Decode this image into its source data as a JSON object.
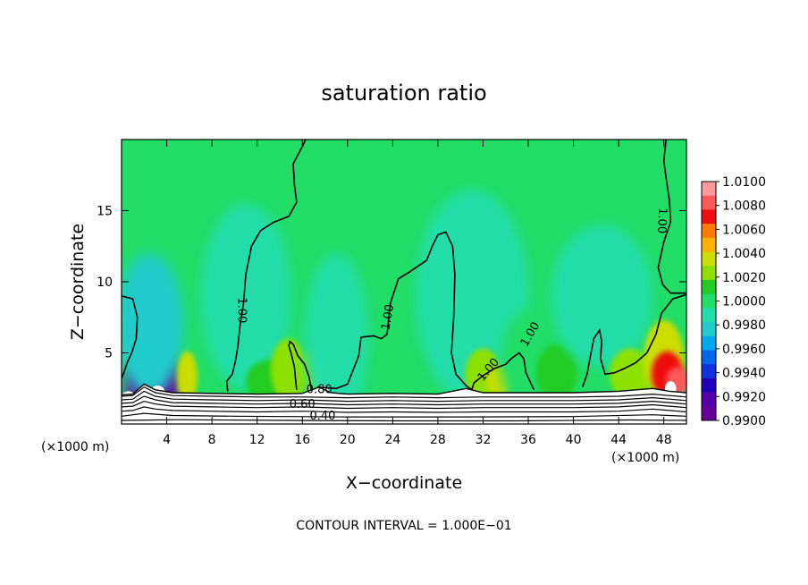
{
  "chart_data": {
    "type": "heatmap",
    "title": "saturation ratio",
    "xlabel": "X−coordinate",
    "ylabel": "Z−coordinate",
    "x_unit_left": "(×1000 m)",
    "x_unit_right": "(×1000 m)",
    "xlim": [
      0,
      50
    ],
    "ylim": [
      0,
      20
    ],
    "x_ticks": [
      4,
      8,
      12,
      16,
      20,
      24,
      28,
      32,
      36,
      40,
      44,
      48
    ],
    "y_ticks": [
      5,
      10,
      15
    ],
    "colorbar": {
      "levels": [
        "1.0100",
        "1.0080",
        "1.0060",
        "1.0040",
        "1.0020",
        "1.0000",
        "0.9980",
        "0.9960",
        "0.9940",
        "0.9920",
        "0.9900"
      ],
      "colors": [
        "#ff9a9a",
        "#ff5a5a",
        "#ee1010",
        "#ff7a00",
        "#ffb000",
        "#ccdd00",
        "#8ee000",
        "#22cc22",
        "#22dd66",
        "#22ddaa",
        "#22cccc",
        "#00aaee",
        "#0066ee",
        "#1133dd",
        "#2200bb",
        "#5500aa",
        "#660099"
      ]
    },
    "background_value": 1.0,
    "contour_labels": [
      "1.00",
      "1.00",
      "1.00",
      "1.00",
      "1.00",
      "0.80",
      "0.60",
      "0.40"
    ],
    "contour_interval_note": "CONTOUR INTERVAL = 1.000E−01",
    "anomalies": [
      {
        "x": 2.8,
        "z": 2.6,
        "rx": 2.4,
        "rz": 2.6,
        "value": 0.9905
      },
      {
        "x": 2.5,
        "z": 7.0,
        "rx": 3.0,
        "rz": 5.0,
        "value": 0.9975
      },
      {
        "x": 5.8,
        "z": 3.3,
        "rx": 0.9,
        "rz": 1.8,
        "value": 1.003
      },
      {
        "x": 11.0,
        "z": 9.0,
        "rx": 4.0,
        "rz": 6.5,
        "value": 0.9988
      },
      {
        "x": 13.0,
        "z": 3.0,
        "rx": 2.0,
        "rz": 1.5,
        "value": 1.0012
      },
      {
        "x": 14.8,
        "z": 3.8,
        "rx": 1.6,
        "rz": 2.2,
        "value": 1.0028
      },
      {
        "x": 17.0,
        "z": 3.5,
        "rx": 1.0,
        "rz": 1.8,
        "value": 1.0022
      },
      {
        "x": 19.0,
        "z": 6.0,
        "rx": 2.8,
        "rz": 6.0,
        "value": 0.999
      },
      {
        "x": 31.0,
        "z": 9.0,
        "rx": 5.0,
        "rz": 7.5,
        "value": 0.9988
      },
      {
        "x": 32.0,
        "z": 3.5,
        "rx": 1.6,
        "rz": 1.8,
        "value": 1.0025
      },
      {
        "x": 33.5,
        "z": 3.0,
        "rx": 1.2,
        "rz": 1.0,
        "value": 1.0032
      },
      {
        "x": 36.0,
        "z": 4.5,
        "rx": 2.5,
        "rz": 3.5,
        "value": 1.0005
      },
      {
        "x": 38.5,
        "z": 3.6,
        "rx": 1.8,
        "rz": 2.0,
        "value": 1.0016
      },
      {
        "x": 42.5,
        "z": 9.0,
        "rx": 4.5,
        "rz": 5.0,
        "value": 0.9989
      },
      {
        "x": 45.0,
        "z": 3.5,
        "rx": 1.8,
        "rz": 1.8,
        "value": 1.0018
      },
      {
        "x": 48.0,
        "z": 4.5,
        "rx": 1.8,
        "rz": 2.8,
        "value": 1.004
      },
      {
        "x": 48.3,
        "z": 3.5,
        "rx": 1.4,
        "rz": 1.6,
        "value": 1.007
      },
      {
        "x": 49.2,
        "z": 3.0,
        "rx": 1.0,
        "rz": 1.0,
        "value": 1.0085
      }
    ],
    "contours_100": [
      [
        [
          0,
          9.0
        ],
        [
          1.0,
          8.8
        ],
        [
          1.4,
          7.5
        ],
        [
          1.3,
          6.0
        ],
        [
          0.9,
          5.0
        ],
        [
          0.5,
          4.3
        ],
        [
          0.2,
          3.6
        ],
        [
          0,
          3.2
        ]
      ],
      [
        [
          9.4,
          2.3
        ],
        [
          9.3,
          3.0
        ],
        [
          9.8,
          3.5
        ],
        [
          10.1,
          4.5
        ],
        [
          10.3,
          5.5
        ],
        [
          10.5,
          7.0
        ],
        [
          10.8,
          8.5
        ],
        [
          11.0,
          10.5
        ],
        [
          11.5,
          12.5
        ],
        [
          12.3,
          13.6
        ],
        [
          13.5,
          14.2
        ],
        [
          14.8,
          14.6
        ],
        [
          15.5,
          15.6
        ],
        [
          15.3,
          16.8
        ],
        [
          15.2,
          18.3
        ],
        [
          16.0,
          19.5
        ],
        [
          16.3,
          20
        ]
      ],
      [
        [
          15.5,
          2.4
        ],
        [
          15.4,
          3.1
        ],
        [
          15.3,
          4.0
        ],
        [
          15.0,
          5.0
        ],
        [
          14.8,
          5.5
        ],
        [
          14.9,
          5.8
        ],
        [
          15.2,
          5.6
        ],
        [
          15.6,
          4.8
        ],
        [
          16.2,
          4.2
        ],
        [
          16.6,
          3.3
        ],
        [
          16.8,
          2.4
        ]
      ],
      [
        [
          17.3,
          2.6
        ],
        [
          19.0,
          2.5
        ],
        [
          20.0,
          2.8
        ],
        [
          21.0,
          4.8
        ],
        [
          21.2,
          6.1
        ],
        [
          22.3,
          6.2
        ],
        [
          23.0,
          6.0
        ],
        [
          23.5,
          6.3
        ],
        [
          23.8,
          8.5
        ],
        [
          24.5,
          10.2
        ],
        [
          25.5,
          10.7
        ],
        [
          27.0,
          11.5
        ],
        [
          27.5,
          12.5
        ],
        [
          28.0,
          13.3
        ],
        [
          28.7,
          13.5
        ],
        [
          29.3,
          12.5
        ],
        [
          29.5,
          10.5
        ],
        [
          29.4,
          7.5
        ],
        [
          29.2,
          5.0
        ],
        [
          29.6,
          3.5
        ],
        [
          30.5,
          2.7
        ],
        [
          31.0,
          2.4
        ]
      ],
      [
        [
          31.0,
          2.4
        ],
        [
          31.2,
          2.9
        ],
        [
          32.0,
          3.4
        ],
        [
          33.0,
          3.9
        ],
        [
          34.0,
          4.2
        ],
        [
          34.5,
          4.6
        ],
        [
          35.2,
          5.0
        ],
        [
          35.6,
          4.6
        ],
        [
          35.8,
          3.6
        ],
        [
          36.2,
          2.9
        ],
        [
          36.5,
          2.4
        ]
      ],
      [
        [
          40.8,
          2.6
        ],
        [
          41.2,
          3.5
        ],
        [
          41.5,
          4.8
        ],
        [
          41.8,
          6.0
        ],
        [
          42.3,
          6.6
        ],
        [
          42.5,
          5.8
        ],
        [
          42.4,
          4.6
        ],
        [
          42.8,
          3.5
        ],
        [
          43.6,
          3.6
        ],
        [
          44.5,
          3.9
        ],
        [
          45.5,
          4.3
        ],
        [
          46.5,
          5.0
        ],
        [
          47.3,
          6.3
        ],
        [
          47.8,
          7.8
        ],
        [
          48.8,
          8.8
        ],
        [
          50.0,
          9.1
        ]
      ],
      [
        [
          48.2,
          20
        ],
        [
          48.0,
          18.5
        ],
        [
          48.2,
          17.3
        ],
        [
          48.5,
          15.7
        ],
        [
          48.6,
          14.2
        ],
        [
          48.0,
          12.8
        ],
        [
          47.5,
          11.0
        ],
        [
          47.9,
          9.8
        ],
        [
          48.6,
          9.2
        ],
        [
          50.0,
          9.2
        ]
      ]
    ],
    "contours_low": [
      [
        [
          0,
          1.95
        ],
        [
          1.0,
          2.0
        ],
        [
          2.0,
          2.6
        ],
        [
          3.0,
          2.2
        ],
        [
          4.5,
          2.0
        ],
        [
          8,
          1.95
        ],
        [
          12,
          1.9
        ],
        [
          16,
          1.9
        ],
        [
          20,
          1.85
        ],
        [
          24,
          1.9
        ],
        [
          28,
          1.85
        ],
        [
          32,
          1.9
        ],
        [
          36,
          1.9
        ],
        [
          40,
          1.9
        ],
        [
          44,
          1.95
        ],
        [
          47,
          2.1
        ],
        [
          48.5,
          2.0
        ],
        [
          50,
          1.9
        ]
      ],
      [
        [
          0,
          1.7
        ],
        [
          1.0,
          1.75
        ],
        [
          2.0,
          2.3
        ],
        [
          3.0,
          1.95
        ],
        [
          4.5,
          1.75
        ],
        [
          8,
          1.7
        ],
        [
          12,
          1.65
        ],
        [
          16,
          1.7
        ],
        [
          20,
          1.6
        ],
        [
          24,
          1.65
        ],
        [
          28,
          1.6
        ],
        [
          32,
          1.65
        ],
        [
          36,
          1.65
        ],
        [
          40,
          1.65
        ],
        [
          44,
          1.7
        ],
        [
          47,
          1.85
        ],
        [
          48.5,
          1.75
        ],
        [
          50,
          1.65
        ]
      ],
      [
        [
          0,
          1.45
        ],
        [
          1.0,
          1.5
        ],
        [
          2.0,
          1.95
        ],
        [
          3.0,
          1.7
        ],
        [
          4.5,
          1.5
        ],
        [
          8,
          1.45
        ],
        [
          12,
          1.4
        ],
        [
          16,
          1.45
        ],
        [
          20,
          1.35
        ],
        [
          24,
          1.4
        ],
        [
          28,
          1.35
        ],
        [
          32,
          1.4
        ],
        [
          36,
          1.4
        ],
        [
          40,
          1.4
        ],
        [
          44,
          1.45
        ],
        [
          47,
          1.6
        ],
        [
          48.5,
          1.5
        ],
        [
          50,
          1.4
        ]
      ],
      [
        [
          0,
          1.2
        ],
        [
          1.0,
          1.25
        ],
        [
          2.0,
          1.6
        ],
        [
          3.0,
          1.4
        ],
        [
          4.5,
          1.25
        ],
        [
          8,
          1.2
        ],
        [
          12,
          1.15
        ],
        [
          16,
          1.2
        ],
        [
          20,
          1.1
        ],
        [
          24,
          1.15
        ],
        [
          28,
          1.1
        ],
        [
          32,
          1.15
        ],
        [
          36,
          1.15
        ],
        [
          40,
          1.15
        ],
        [
          44,
          1.2
        ],
        [
          47,
          1.35
        ],
        [
          48.5,
          1.25
        ],
        [
          50,
          1.15
        ]
      ],
      [
        [
          0,
          0.9
        ],
        [
          1.0,
          0.95
        ],
        [
          2.0,
          1.2
        ],
        [
          3.0,
          1.05
        ],
        [
          4.5,
          0.95
        ],
        [
          8,
          0.9
        ],
        [
          12,
          0.85
        ],
        [
          16,
          0.9
        ],
        [
          20,
          0.82
        ],
        [
          24,
          0.85
        ],
        [
          28,
          0.82
        ],
        [
          32,
          0.85
        ],
        [
          36,
          0.85
        ],
        [
          40,
          0.85
        ],
        [
          44,
          0.9
        ],
        [
          47,
          1.05
        ],
        [
          48.5,
          0.95
        ],
        [
          50,
          0.85
        ]
      ],
      [
        [
          0,
          0.55
        ],
        [
          2.0,
          0.75
        ],
        [
          4.5,
          0.6
        ],
        [
          10,
          0.55
        ],
        [
          20,
          0.5
        ],
        [
          30,
          0.5
        ],
        [
          40,
          0.52
        ],
        [
          47,
          0.65
        ],
        [
          50,
          0.55
        ]
      ],
      [
        [
          0,
          0.25
        ],
        [
          5,
          0.3
        ],
        [
          15,
          0.25
        ],
        [
          25,
          0.22
        ],
        [
          35,
          0.22
        ],
        [
          45,
          0.28
        ],
        [
          50,
          0.25
        ]
      ]
    ],
    "surface_line": [
      [
        0,
        2.05
      ],
      [
        1.0,
        2.1
      ],
      [
        2.0,
        2.8
      ],
      [
        3.0,
        2.4
      ],
      [
        4.5,
        2.2
      ],
      [
        8,
        2.15
      ],
      [
        12,
        2.1
      ],
      [
        16,
        2.15
      ],
      [
        17.5,
        2.6
      ],
      [
        18.5,
        2.2
      ],
      [
        20,
        2.1
      ],
      [
        24,
        2.15
      ],
      [
        28,
        2.1
      ],
      [
        30.5,
        2.5
      ],
      [
        32,
        2.2
      ],
      [
        36,
        2.2
      ],
      [
        40,
        2.2
      ],
      [
        44,
        2.3
      ],
      [
        47,
        2.5
      ],
      [
        48.5,
        2.3
      ],
      [
        50,
        2.2
      ]
    ],
    "white_patches": [
      {
        "x": 0.6,
        "z": 1.9,
        "rx": 0.6,
        "rz": 0.4
      },
      {
        "x": 3.2,
        "z": 2.3,
        "rx": 0.6,
        "rz": 0.4
      },
      {
        "x": 17.8,
        "z": 2.3,
        "rx": 0.5,
        "rz": 0.4
      },
      {
        "x": 48.6,
        "z": 2.5,
        "rx": 0.5,
        "rz": 0.5
      }
    ]
  }
}
